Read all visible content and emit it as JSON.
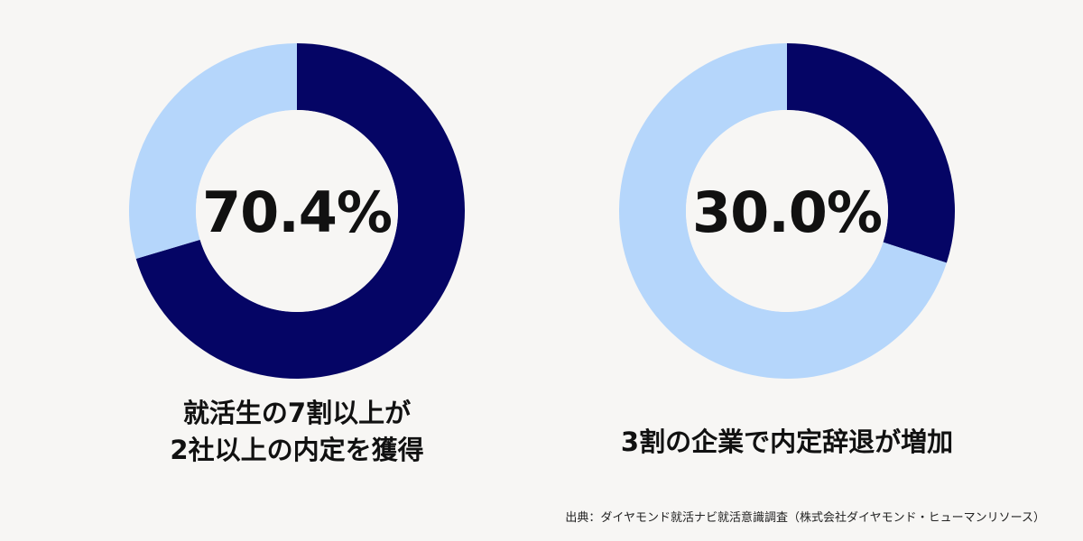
{
  "colors": {
    "primary": "#050565",
    "secondary": "#b5d6fb",
    "background": "#f7f6f4"
  },
  "chart_data": [
    {
      "type": "pie",
      "variant": "donut",
      "values": [
        70.4,
        29.6
      ],
      "colors": [
        "#050565",
        "#b5d6fb"
      ],
      "center_label": "70.4%",
      "caption_lines": [
        "就活生の7割以上が",
        "2社以上の内定を獲得"
      ]
    },
    {
      "type": "pie",
      "variant": "donut",
      "values": [
        30.0,
        70.0
      ],
      "colors": [
        "#050565",
        "#b5d6fb"
      ],
      "center_label": "30.0%",
      "caption_lines": [
        "3割の企業で内定辞退が増加"
      ]
    }
  ],
  "source": "出典：ダイヤモンド就活ナビ就活意識調査（株式会社ダイヤモンド・ヒューマンリソース）"
}
